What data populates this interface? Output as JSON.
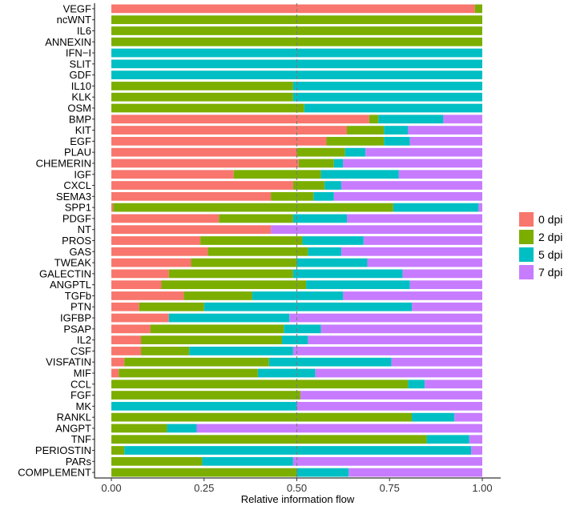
{
  "chart_data": {
    "type": "bar",
    "orientation": "horizontal",
    "stacked": true,
    "xlabel": "Relative information flow",
    "ylabel": "",
    "xlim": [
      0,
      1
    ],
    "xticks": [
      "0.00",
      "0.25",
      "0.50",
      "0.75",
      "1.00"
    ],
    "reference_line": 0.5,
    "categories": [
      "VEGF",
      "ncWNT",
      "IL6",
      "ANNEXIN",
      "IFN−I",
      "SLIT",
      "GDF",
      "IL10",
      "KLK",
      "OSM",
      "BMP",
      "KIT",
      "EGF",
      "PLAU",
      "CHEMERIN",
      "IGF",
      "CXCL",
      "SEMA3",
      "SPP1",
      "PDGF",
      "NT",
      "PROS",
      "GAS",
      "TWEAK",
      "GALECTIN",
      "ANGPTL",
      "TGFb",
      "PTN",
      "IGFBP",
      "PSAP",
      "IL2",
      "CSF",
      "VISFATIN",
      "MIF",
      "CCL",
      "FGF",
      "MK",
      "RANKL",
      "ANGPT",
      "TNF",
      "PERIOSTIN",
      "PARs",
      "COMPLEMENT"
    ],
    "series": [
      {
        "name": "0 dpi",
        "color": "#F8766D",
        "values": [
          0.98,
          0,
          0,
          0,
          0,
          0,
          0,
          0,
          0,
          0,
          0.695,
          0.635,
          0.58,
          0.5,
          0.505,
          0.33,
          0.49,
          0.43,
          0.005,
          0.29,
          0.43,
          0.24,
          0.26,
          0.215,
          0.155,
          0.135,
          0.195,
          0.075,
          0.155,
          0.105,
          0.08,
          0.08,
          0.035,
          0.02,
          0,
          0,
          0,
          0,
          0,
          0,
          0,
          0,
          0
        ]
      },
      {
        "name": "2 dpi",
        "color": "#7CAE00",
        "values": [
          0.02,
          1,
          1,
          1,
          0,
          0,
          0,
          0.49,
          0.49,
          0.52,
          0.025,
          0.1,
          0.155,
          0.13,
          0.095,
          0.235,
          0.085,
          0.115,
          0.755,
          0.2,
          0,
          0.275,
          0.27,
          0.285,
          0.335,
          0.39,
          0.185,
          0.175,
          0,
          0.36,
          0.38,
          0.13,
          0.39,
          0.375,
          0.8,
          0.51,
          0,
          0.81,
          0.15,
          0.85,
          0.035,
          0.245,
          0.5
        ]
      },
      {
        "name": "5 dpi",
        "color": "#00BFC4",
        "values": [
          0,
          0,
          0,
          0,
          1,
          1,
          1,
          0.51,
          0.51,
          0.48,
          0.175,
          0.065,
          0.07,
          0.055,
          0.025,
          0.21,
          0.045,
          0.055,
          0.23,
          0.145,
          0,
          0.165,
          0.09,
          0.19,
          0.295,
          0.28,
          0.245,
          0.56,
          0.325,
          0.1,
          0.07,
          0.28,
          0.33,
          0.155,
          0.045,
          0,
          0.5,
          0.115,
          0.08,
          0.115,
          0.935,
          0.245,
          0.14
        ]
      },
      {
        "name": "7 dpi",
        "color": "#C77CFF",
        "values": [
          0,
          0,
          0,
          0,
          0,
          0,
          0,
          0,
          0,
          0,
          0.105,
          0.2,
          0.195,
          0.315,
          0.375,
          0.225,
          0.38,
          0.4,
          0.01,
          0.365,
          0.57,
          0.32,
          0.38,
          0.31,
          0.215,
          0.195,
          0.375,
          0.19,
          0.52,
          0.435,
          0.47,
          0.51,
          0.245,
          0.45,
          0.155,
          0.49,
          0.5,
          0.075,
          0.77,
          0.035,
          0.03,
          0.51,
          0.36
        ]
      }
    ]
  }
}
